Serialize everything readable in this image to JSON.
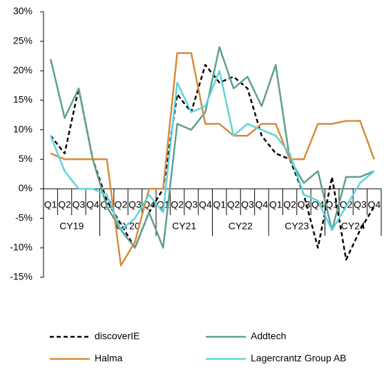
{
  "chart_data": {
    "type": "line",
    "categories": [
      "Q1",
      "Q2",
      "Q3",
      "Q4",
      "Q1",
      "Q2",
      "Q3",
      "Q4",
      "Q1",
      "Q2",
      "Q3",
      "Q4",
      "Q1",
      "Q2",
      "Q3",
      "Q4",
      "Q1",
      "Q2",
      "Q3",
      "Q4",
      "Q1",
      "Q2",
      "Q3",
      "Q4"
    ],
    "category_groups": [
      "CY19",
      "CY20",
      "CY21",
      "CY22",
      "CY23",
      "CY24"
    ],
    "series": [
      {
        "name": "discoverIE",
        "color": "#000000",
        "dashed": true,
        "values": [
          9,
          6,
          17,
          5,
          -2,
          -6,
          -10,
          -4,
          0,
          16,
          13,
          21,
          18,
          19,
          17,
          9,
          6,
          5,
          -1,
          -10,
          2,
          -12,
          -7,
          -3
        ]
      },
      {
        "name": "Addtech",
        "color": "#5f9e8f",
        "values": [
          22,
          12,
          17,
          5,
          -3,
          -7,
          -10,
          -4,
          -10,
          11,
          10,
          13,
          24,
          17,
          19,
          14,
          21,
          5,
          1,
          3,
          -7,
          2,
          2,
          3
        ]
      },
      {
        "name": "Halma",
        "color": "#d9893a",
        "values": [
          6,
          5,
          5,
          5,
          5,
          -13,
          -9,
          0,
          0,
          23,
          23,
          11,
          11,
          9,
          9,
          11,
          11,
          5,
          5,
          11,
          11,
          11.5,
          11.5,
          5
        ]
      },
      {
        "name": "Lagercrantz Group AB",
        "color": "#5fd3dc",
        "values": [
          9,
          3,
          0,
          0,
          -1,
          -7,
          -5,
          -1,
          -4,
          18,
          13,
          14,
          20,
          9,
          11,
          10,
          9,
          6,
          -1,
          -2,
          -7,
          -3,
          1,
          3
        ]
      }
    ],
    "ylim": [
      -15,
      30
    ],
    "yticks": [
      {
        "value": -15,
        "label": "-15%"
      },
      {
        "value": -10,
        "label": "-10%"
      },
      {
        "value": -5,
        "label": "-5%"
      },
      {
        "value": 0,
        "label": "0%"
      },
      {
        "value": 5,
        "label": "5%"
      },
      {
        "value": 10,
        "label": "10%"
      },
      {
        "value": 15,
        "label": "15%"
      },
      {
        "value": 20,
        "label": "20%"
      },
      {
        "value": 25,
        "label": "25%"
      },
      {
        "value": 30,
        "label": "30%"
      }
    ],
    "legend": "bottom"
  }
}
